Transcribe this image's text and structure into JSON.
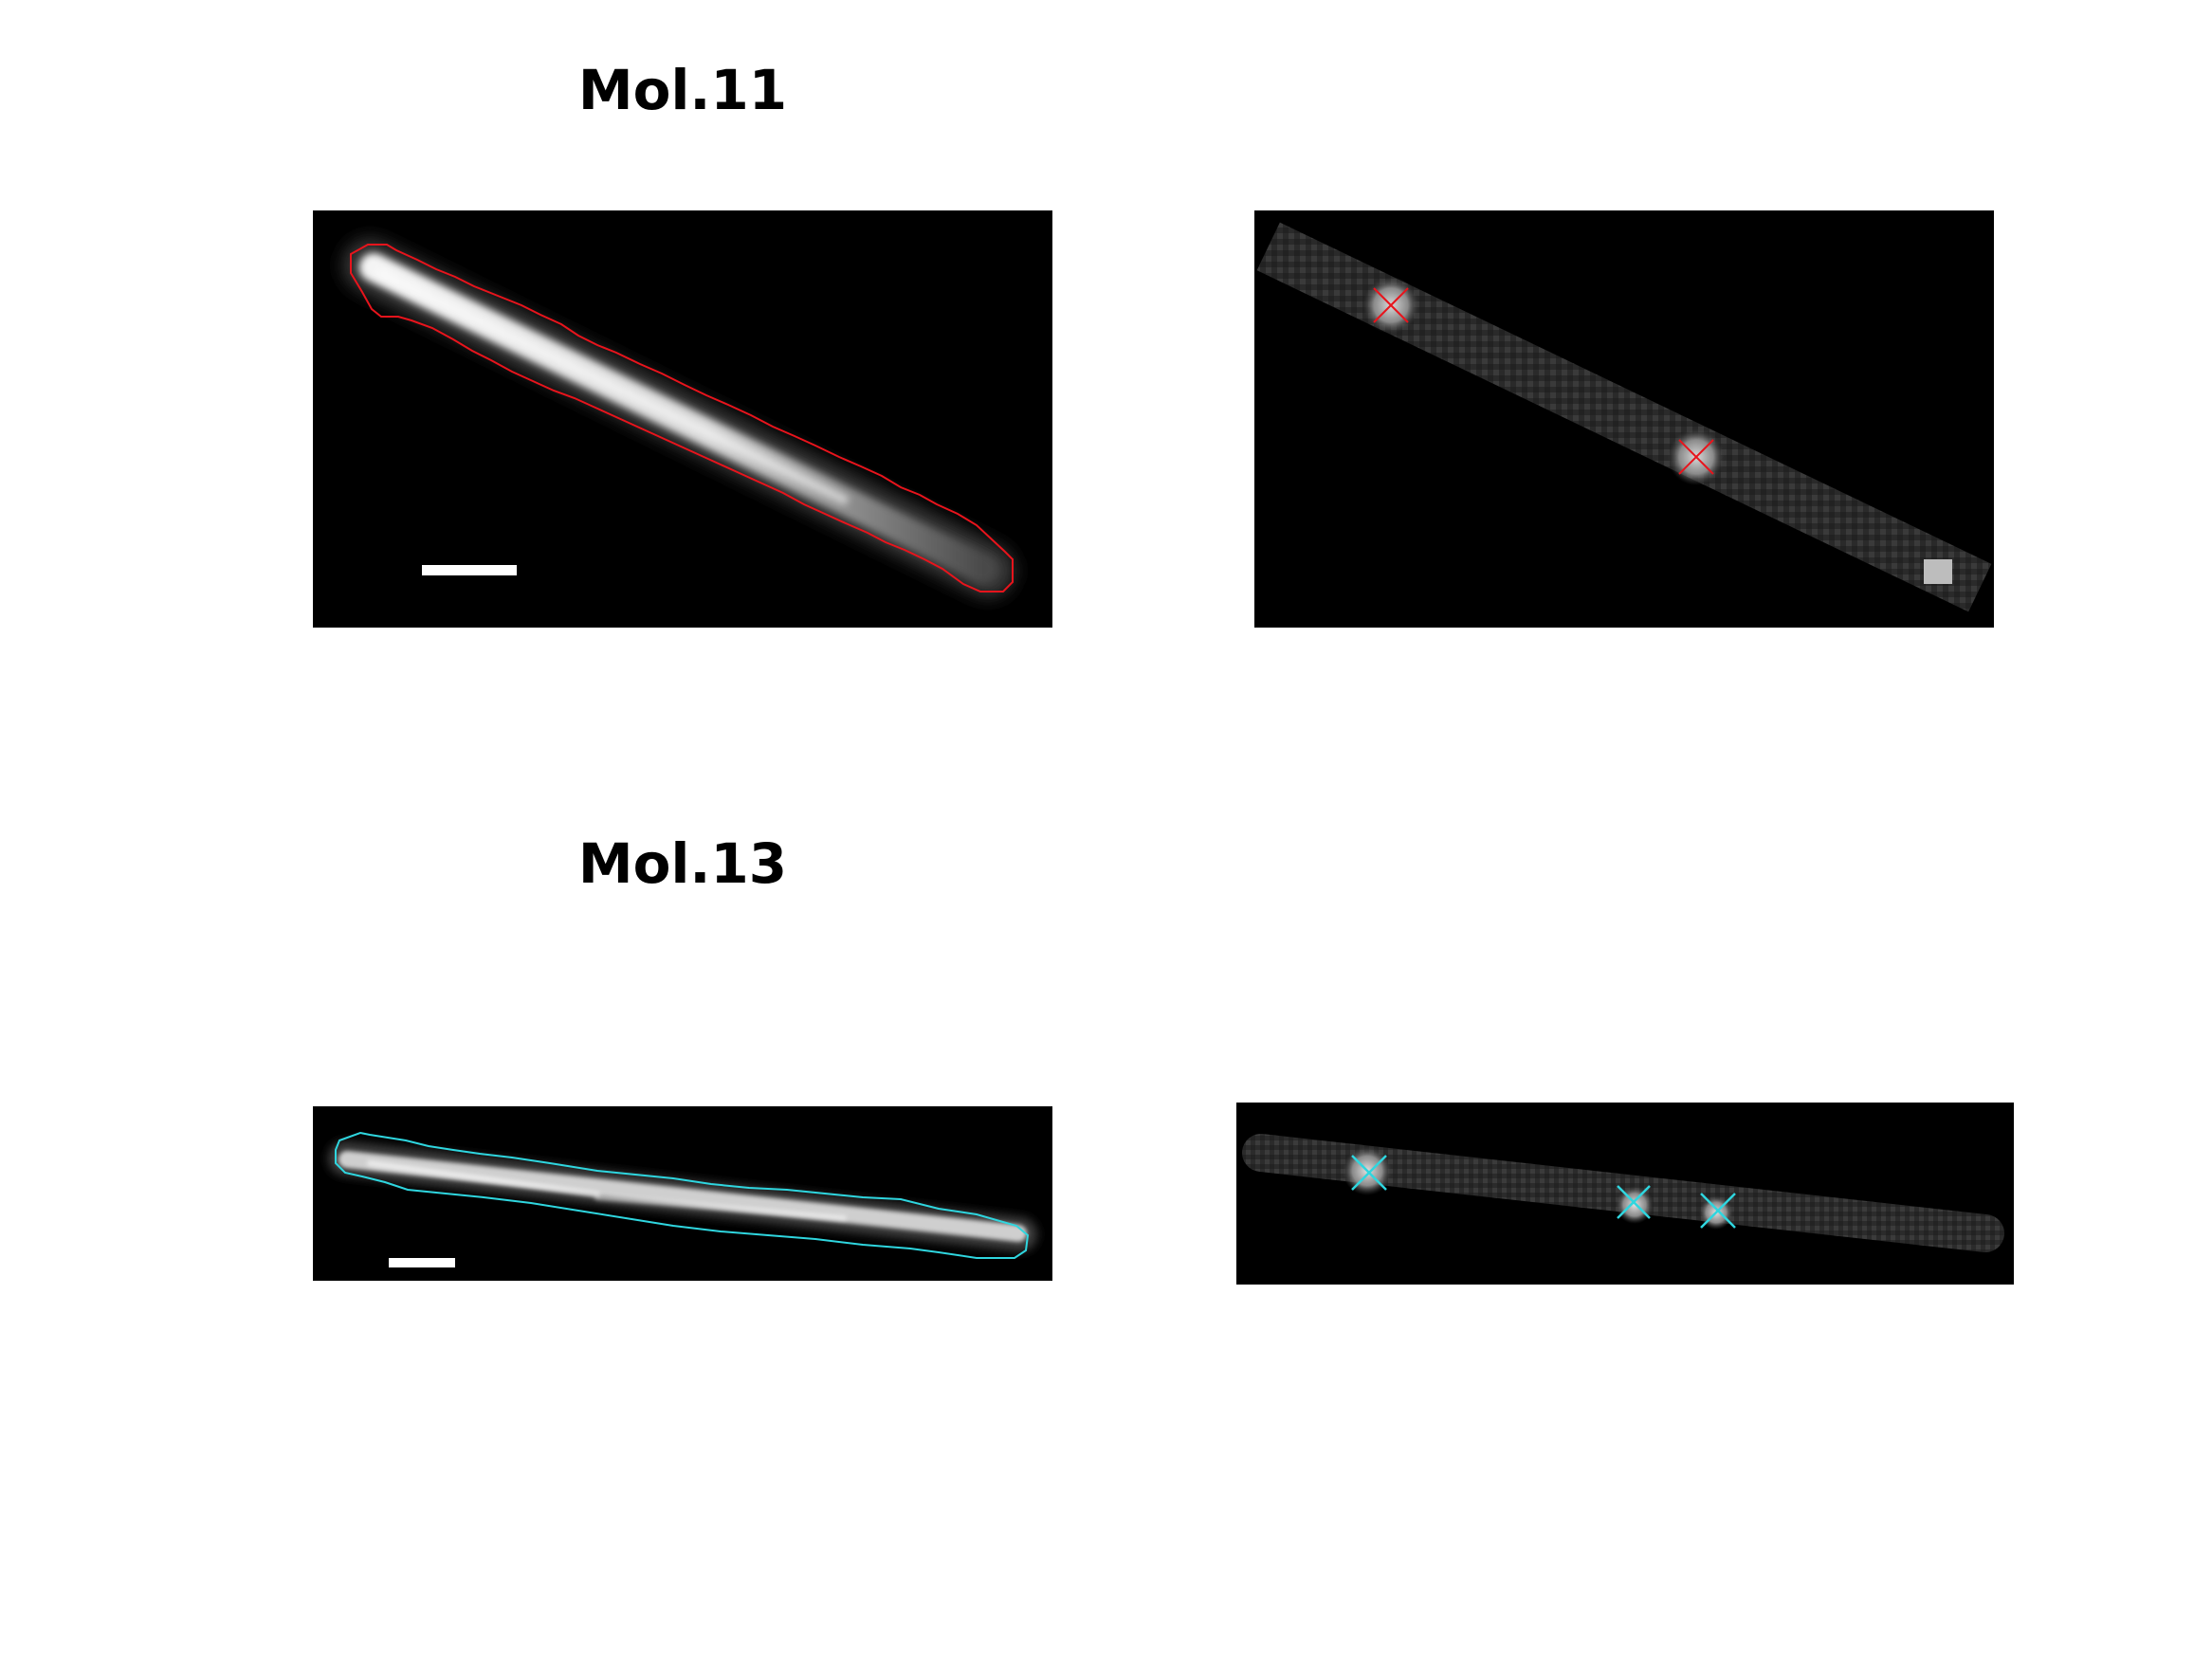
{
  "figure": {
    "rows": [
      {
        "title": "Mol.11",
        "outline_color": "#e8141c",
        "marker_color": "#e8141c",
        "spot_count": 2
      },
      {
        "title": "Mol.13",
        "outline_color": "#2fd6df",
        "marker_color": "#2fd6df",
        "spot_count": 3
      }
    ],
    "scalebar_color": "#ffffff",
    "panel_background": "#000000"
  }
}
